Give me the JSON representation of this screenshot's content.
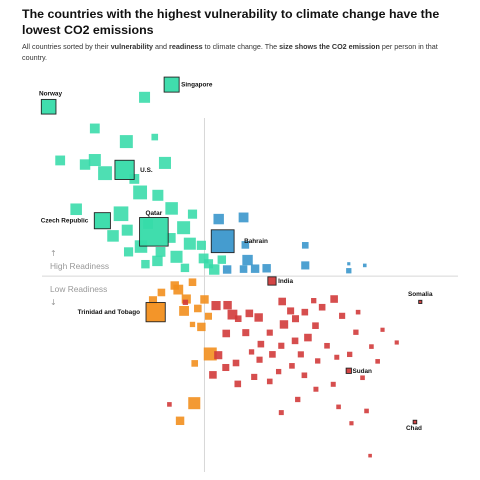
{
  "header": {
    "title": "The countries with the highest vulnerability to climate change have the lowest CO2 emissions",
    "subtitle_parts": [
      {
        "text": "All countries sorted by their ",
        "bold": false
      },
      {
        "text": "vulnerability",
        "bold": true
      },
      {
        "text": " and ",
        "bold": false
      },
      {
        "text": "readiness",
        "bold": true
      },
      {
        "text": " to climate change. The ",
        "bold": false
      },
      {
        "text": "size shows the CO2 emission",
        "bold": true
      },
      {
        "text": " per person in that country.",
        "bold": false
      }
    ]
  },
  "chart_data": {
    "type": "scatter",
    "x_axis": "vulnerability",
    "y_axis": "readiness",
    "size": "CO2 emission per person",
    "xlim": [
      0,
      100
    ],
    "ylim": [
      0,
      100
    ],
    "divider": {
      "x": 41.1,
      "y": 47.3
    },
    "region_labels": {
      "high": {
        "arrow": "↑",
        "text": "High Readiness"
      },
      "low": {
        "text": "Low Readiness",
        "arrow": "↓"
      }
    },
    "colors": {
      "green": "#36dba9",
      "blue": "#3b97cc",
      "orange": "#f28f1e",
      "red": "#d13b3b"
    },
    "labeled_points": [
      {
        "label": "Singapore",
        "x": 33.7,
        "y": 94.0,
        "co2": 8.5,
        "color": "green"
      },
      {
        "label": "Norway",
        "x": 6.0,
        "y": 88.6,
        "co2": 8.0,
        "color": "green"
      },
      {
        "label": "U.S.",
        "x": 23.1,
        "y": 73.2,
        "co2": 15.0,
        "color": "green"
      },
      {
        "label": "Czech Republic",
        "x": 18.1,
        "y": 60.8,
        "co2": 10.0,
        "color": "green"
      },
      {
        "label": "Qatar",
        "x": 29.7,
        "y": 58.1,
        "co2": 36.0,
        "color": "green"
      },
      {
        "label": "Bahrain",
        "x": 45.2,
        "y": 55.8,
        "co2": 22.0,
        "color": "blue"
      },
      {
        "label": "India",
        "x": 56.3,
        "y": 46.1,
        "co2": 1.9,
        "color": "red"
      },
      {
        "label": "Trinidad and Tobago",
        "x": 30.1,
        "y": 38.5,
        "co2": 15.0,
        "color": "orange"
      },
      {
        "label": "Somalia",
        "x": 89.7,
        "y": 41.0,
        "co2": 0.05,
        "color": "red"
      },
      {
        "label": "Sudan",
        "x": 73.6,
        "y": 24.2,
        "co2": 0.5,
        "color": "red"
      },
      {
        "label": "Chad",
        "x": 88.5,
        "y": 11.7,
        "co2": 0.1,
        "color": "red"
      }
    ],
    "points": [
      {
        "x": 27.6,
        "y": 90.9,
        "co2": 4.0,
        "color": "green"
      },
      {
        "x": 16.4,
        "y": 83.3,
        "co2": 3.0,
        "color": "green"
      },
      {
        "x": 23.5,
        "y": 80.1,
        "co2": 6.0,
        "color": "green"
      },
      {
        "x": 29.9,
        "y": 81.2,
        "co2": 1.0,
        "color": "green"
      },
      {
        "x": 8.6,
        "y": 75.5,
        "co2": 3.0,
        "color": "green"
      },
      {
        "x": 14.2,
        "y": 74.5,
        "co2": 3.5,
        "color": "green"
      },
      {
        "x": 16.4,
        "y": 75.6,
        "co2": 5.0,
        "color": "green"
      },
      {
        "x": 18.7,
        "y": 72.4,
        "co2": 7.0,
        "color": "green"
      },
      {
        "x": 25.3,
        "y": 71.0,
        "co2": 3.0,
        "color": "green"
      },
      {
        "x": 32.2,
        "y": 74.9,
        "co2": 5.0,
        "color": "green"
      },
      {
        "x": 26.6,
        "y": 67.7,
        "co2": 7.0,
        "color": "green"
      },
      {
        "x": 30.6,
        "y": 67.0,
        "co2": 4.0,
        "color": "green"
      },
      {
        "x": 12.2,
        "y": 63.6,
        "co2": 4.5,
        "color": "green"
      },
      {
        "x": 22.3,
        "y": 62.5,
        "co2": 8.0,
        "color": "green"
      },
      {
        "x": 33.7,
        "y": 63.8,
        "co2": 5.5,
        "color": "green"
      },
      {
        "x": 36.4,
        "y": 59.1,
        "co2": 6.0,
        "color": "green"
      },
      {
        "x": 23.7,
        "y": 58.5,
        "co2": 4.0,
        "color": "green"
      },
      {
        "x": 20.5,
        "y": 57.1,
        "co2": 4.5,
        "color": "green"
      },
      {
        "x": 28.4,
        "y": 60.0,
        "co2": 3.0,
        "color": "green"
      },
      {
        "x": 33.5,
        "y": 56.6,
        "co2": 3.0,
        "color": "green"
      },
      {
        "x": 40.4,
        "y": 54.8,
        "co2": 2.5,
        "color": "green"
      },
      {
        "x": 37.8,
        "y": 55.2,
        "co2": 5.0,
        "color": "green"
      },
      {
        "x": 26.8,
        "y": 54.5,
        "co2": 5.5,
        "color": "green"
      },
      {
        "x": 31.2,
        "y": 53.2,
        "co2": 3.0,
        "color": "green"
      },
      {
        "x": 34.8,
        "y": 52.0,
        "co2": 5.0,
        "color": "green"
      },
      {
        "x": 30.5,
        "y": 51.0,
        "co2": 3.5,
        "color": "green"
      },
      {
        "x": 40.9,
        "y": 51.6,
        "co2": 3.0,
        "color": "green"
      },
      {
        "x": 27.8,
        "y": 50.2,
        "co2": 2.0,
        "color": "green"
      },
      {
        "x": 36.7,
        "y": 49.3,
        "co2": 2.0,
        "color": "green"
      },
      {
        "x": 42.0,
        "y": 50.3,
        "co2": 2.5,
        "color": "green"
      },
      {
        "x": 45.0,
        "y": 51.3,
        "co2": 2.0,
        "color": "green"
      },
      {
        "x": 43.3,
        "y": 48.9,
        "co2": 3.5,
        "color": "green"
      },
      {
        "x": 24.0,
        "y": 53.2,
        "co2": 2.5,
        "color": "green"
      },
      {
        "x": 38.4,
        "y": 62.4,
        "co2": 2.5,
        "color": "green"
      },
      {
        "x": 44.3,
        "y": 61.2,
        "co2": 3.5,
        "color": "blue"
      },
      {
        "x": 49.9,
        "y": 61.6,
        "co2": 3.0,
        "color": "blue"
      },
      {
        "x": 50.3,
        "y": 54.9,
        "co2": 1.5,
        "color": "blue"
      },
      {
        "x": 63.8,
        "y": 54.8,
        "co2": 1.0,
        "color": "blue"
      },
      {
        "x": 50.8,
        "y": 51.2,
        "co2": 3.5,
        "color": "blue"
      },
      {
        "x": 46.2,
        "y": 48.9,
        "co2": 2.0,
        "color": "blue"
      },
      {
        "x": 49.9,
        "y": 49.0,
        "co2": 1.5,
        "color": "blue"
      },
      {
        "x": 52.5,
        "y": 49.1,
        "co2": 2.0,
        "color": "blue"
      },
      {
        "x": 55.1,
        "y": 49.2,
        "co2": 2.0,
        "color": "blue"
      },
      {
        "x": 63.8,
        "y": 49.9,
        "co2": 1.8,
        "color": "blue"
      },
      {
        "x": 73.6,
        "y": 48.6,
        "co2": 0.5,
        "color": "blue"
      },
      {
        "x": 77.2,
        "y": 49.9,
        "co2": 0.1,
        "color": "blue"
      },
      {
        "x": 73.6,
        "y": 50.3,
        "co2": 0.05,
        "color": "blue"
      },
      {
        "x": 34.4,
        "y": 45.0,
        "co2": 2.0,
        "color": "orange"
      },
      {
        "x": 38.4,
        "y": 45.8,
        "co2": 1.5,
        "color": "orange"
      },
      {
        "x": 35.2,
        "y": 44.0,
        "co2": 3.0,
        "color": "orange"
      },
      {
        "x": 31.4,
        "y": 43.3,
        "co2": 1.5,
        "color": "orange"
      },
      {
        "x": 37.0,
        "y": 41.7,
        "co2": 2.5,
        "color": "orange"
      },
      {
        "x": 41.1,
        "y": 41.6,
        "co2": 2.0,
        "color": "orange"
      },
      {
        "x": 36.5,
        "y": 38.8,
        "co2": 3.0,
        "color": "orange"
      },
      {
        "x": 29.5,
        "y": 41.4,
        "co2": 1.8,
        "color": "orange"
      },
      {
        "x": 38.4,
        "y": 35.5,
        "co2": 0.5,
        "color": "orange"
      },
      {
        "x": 40.4,
        "y": 34.9,
        "co2": 2.0,
        "color": "orange"
      },
      {
        "x": 39.6,
        "y": 39.4,
        "co2": 1.5,
        "color": "orange"
      },
      {
        "x": 42.0,
        "y": 37.5,
        "co2": 1.2,
        "color": "orange"
      },
      {
        "x": 42.4,
        "y": 28.3,
        "co2": 6.0,
        "color": "orange"
      },
      {
        "x": 38.9,
        "y": 26.0,
        "co2": 1.0,
        "color": "orange"
      },
      {
        "x": 38.8,
        "y": 16.3,
        "co2": 5.0,
        "color": "orange"
      },
      {
        "x": 35.6,
        "y": 12.0,
        "co2": 2.0,
        "color": "orange"
      },
      {
        "x": 43.7,
        "y": 40.1,
        "co2": 2.5,
        "color": "red"
      },
      {
        "x": 46.3,
        "y": 40.2,
        "co2": 2.0,
        "color": "red"
      },
      {
        "x": 47.4,
        "y": 37.9,
        "co2": 3.0,
        "color": "red"
      },
      {
        "x": 48.7,
        "y": 36.9,
        "co2": 1.0,
        "color": "red"
      },
      {
        "x": 51.2,
        "y": 38.2,
        "co2": 1.5,
        "color": "red"
      },
      {
        "x": 53.3,
        "y": 37.2,
        "co2": 2.0,
        "color": "red"
      },
      {
        "x": 46.0,
        "y": 33.3,
        "co2": 1.5,
        "color": "red"
      },
      {
        "x": 50.4,
        "y": 33.5,
        "co2": 1.2,
        "color": "red"
      },
      {
        "x": 53.8,
        "y": 30.7,
        "co2": 1.0,
        "color": "red"
      },
      {
        "x": 55.8,
        "y": 33.5,
        "co2": 0.8,
        "color": "red"
      },
      {
        "x": 58.6,
        "y": 41.1,
        "co2": 1.5,
        "color": "red"
      },
      {
        "x": 60.5,
        "y": 38.8,
        "co2": 1.2,
        "color": "red"
      },
      {
        "x": 59.0,
        "y": 35.5,
        "co2": 2.0,
        "color": "red"
      },
      {
        "x": 61.6,
        "y": 36.9,
        "co2": 1.2,
        "color": "red"
      },
      {
        "x": 63.7,
        "y": 38.5,
        "co2": 1.0,
        "color": "red"
      },
      {
        "x": 65.7,
        "y": 41.3,
        "co2": 0.5,
        "color": "red"
      },
      {
        "x": 67.6,
        "y": 39.7,
        "co2": 1.0,
        "color": "red"
      },
      {
        "x": 70.3,
        "y": 41.7,
        "co2": 1.5,
        "color": "red"
      },
      {
        "x": 72.1,
        "y": 37.6,
        "co2": 0.8,
        "color": "red"
      },
      {
        "x": 75.2,
        "y": 33.6,
        "co2": 0.5,
        "color": "red"
      },
      {
        "x": 66.1,
        "y": 35.2,
        "co2": 1.0,
        "color": "red"
      },
      {
        "x": 64.4,
        "y": 32.3,
        "co2": 1.5,
        "color": "red"
      },
      {
        "x": 61.5,
        "y": 31.5,
        "co2": 1.0,
        "color": "red"
      },
      {
        "x": 58.4,
        "y": 30.3,
        "co2": 0.8,
        "color": "red"
      },
      {
        "x": 56.4,
        "y": 28.2,
        "co2": 1.0,
        "color": "red"
      },
      {
        "x": 53.5,
        "y": 26.9,
        "co2": 0.8,
        "color": "red"
      },
      {
        "x": 51.7,
        "y": 28.8,
        "co2": 0.5,
        "color": "red"
      },
      {
        "x": 48.2,
        "y": 26.1,
        "co2": 1.0,
        "color": "red"
      },
      {
        "x": 45.9,
        "y": 25.0,
        "co2": 1.2,
        "color": "red"
      },
      {
        "x": 44.2,
        "y": 28.0,
        "co2": 1.8,
        "color": "red"
      },
      {
        "x": 43.0,
        "y": 23.2,
        "co2": 1.5,
        "color": "red"
      },
      {
        "x": 48.6,
        "y": 21.0,
        "co2": 1.0,
        "color": "red"
      },
      {
        "x": 52.3,
        "y": 22.7,
        "co2": 0.8,
        "color": "red"
      },
      {
        "x": 55.8,
        "y": 21.6,
        "co2": 0.6,
        "color": "red"
      },
      {
        "x": 57.8,
        "y": 24.0,
        "co2": 0.5,
        "color": "red"
      },
      {
        "x": 60.8,
        "y": 25.4,
        "co2": 0.6,
        "color": "red"
      },
      {
        "x": 62.8,
        "y": 28.2,
        "co2": 0.8,
        "color": "red"
      },
      {
        "x": 66.6,
        "y": 26.6,
        "co2": 0.5,
        "color": "red"
      },
      {
        "x": 68.7,
        "y": 30.3,
        "co2": 0.6,
        "color": "red"
      },
      {
        "x": 70.9,
        "y": 27.5,
        "co2": 0.4,
        "color": "red"
      },
      {
        "x": 73.8,
        "y": 28.2,
        "co2": 0.5,
        "color": "red"
      },
      {
        "x": 78.7,
        "y": 30.1,
        "co2": 0.3,
        "color": "red"
      },
      {
        "x": 81.2,
        "y": 34.2,
        "co2": 0.2,
        "color": "red"
      },
      {
        "x": 84.4,
        "y": 31.1,
        "co2": 0.2,
        "color": "red"
      },
      {
        "x": 80.1,
        "y": 26.5,
        "co2": 0.3,
        "color": "red"
      },
      {
        "x": 76.7,
        "y": 22.5,
        "co2": 0.3,
        "color": "red"
      },
      {
        "x": 66.2,
        "y": 19.7,
        "co2": 0.4,
        "color": "red"
      },
      {
        "x": 62.1,
        "y": 17.2,
        "co2": 0.5,
        "color": "red"
      },
      {
        "x": 58.4,
        "y": 14.0,
        "co2": 0.4,
        "color": "red"
      },
      {
        "x": 71.3,
        "y": 15.4,
        "co2": 0.3,
        "color": "red"
      },
      {
        "x": 77.6,
        "y": 14.4,
        "co2": 0.3,
        "color": "red"
      },
      {
        "x": 74.2,
        "y": 11.4,
        "co2": 0.2,
        "color": "red"
      },
      {
        "x": 63.6,
        "y": 23.1,
        "co2": 0.6,
        "color": "red"
      },
      {
        "x": 70.1,
        "y": 20.9,
        "co2": 0.4,
        "color": "red"
      },
      {
        "x": 75.7,
        "y": 38.5,
        "co2": 0.3,
        "color": "red"
      },
      {
        "x": 78.4,
        "y": 3.5,
        "co2": 0.1,
        "color": "red"
      },
      {
        "x": 33.2,
        "y": 16.0,
        "co2": 0.3,
        "color": "red"
      },
      {
        "x": 36.8,
        "y": 40.9,
        "co2": 0.5,
        "color": "red"
      }
    ]
  }
}
